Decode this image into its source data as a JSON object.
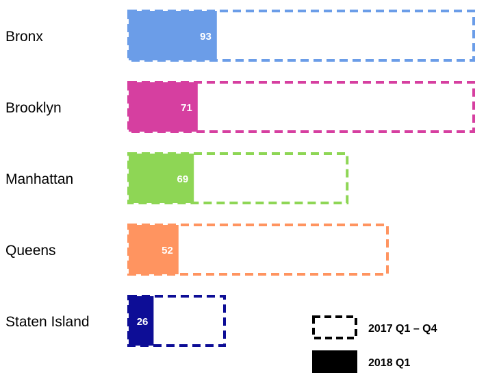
{
  "chart_data": {
    "type": "bar",
    "orientation": "horizontal",
    "categories": [
      "Bronx",
      "Brooklyn",
      "Manhattan",
      "Queens",
      "Staten Island"
    ],
    "series": [
      {
        "name": "2017 Q1 – Q4",
        "style": "dashed-outline",
        "values": [
          180,
          180,
          114,
          135,
          50
        ]
      },
      {
        "name": "2018 Q1",
        "style": "filled",
        "values": [
          46,
          36,
          34,
          26,
          13
        ]
      }
    ],
    "data_labels": [
      93,
      71,
      69,
      52,
      26
    ],
    "colors": [
      "#6b9de8",
      "#d63fa0",
      "#8ed655",
      "#ff9460",
      "#0d0d96"
    ],
    "legend": {
      "placement": "bottom-right",
      "items": [
        "2017 Q1 – Q4",
        "2018 Q1"
      ]
    },
    "title": "",
    "xlabel": "",
    "ylabel": "",
    "grid": false
  }
}
